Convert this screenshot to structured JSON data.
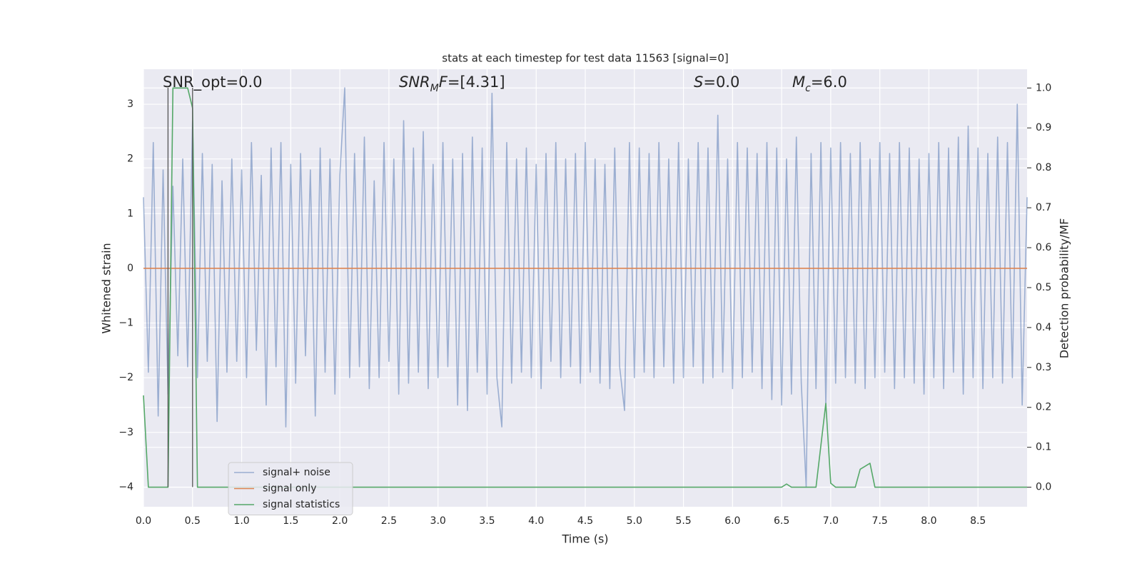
{
  "chart_data": {
    "type": "line",
    "title": "stats at each timestep for test data 11563 [signal=0]",
    "xlabel": "Time (s)",
    "ylabel": "Whitened strain",
    "y2label": "Detection probability/MF",
    "xlim": [
      0,
      9
    ],
    "ylim": [
      -4.36,
      3.64
    ],
    "y2lim": [
      -0.049,
      1.047
    ],
    "xticks": [
      {
        "value": 0,
        "label": "0.0"
      },
      0.5,
      {
        "value": 1,
        "label": "1.0"
      },
      1.5,
      {
        "value": 2,
        "label": "2.0"
      },
      2.5,
      {
        "value": 3,
        "label": "3.0"
      },
      3.5,
      {
        "value": 4,
        "label": "4.0"
      },
      4.5,
      {
        "value": 5,
        "label": "5.0"
      },
      5.5,
      {
        "value": 6,
        "label": "6.0"
      },
      6.5,
      {
        "value": 7,
        "label": "7.0"
      },
      7.5,
      {
        "value": 8,
        "label": "8.0"
      },
      8.5
    ],
    "yticks": [
      {
        "value": -4,
        "label": "−4"
      },
      {
        "value": -3,
        "label": "−3"
      },
      {
        "value": -2,
        "label": "−2"
      },
      {
        "value": -1,
        "label": "−1"
      },
      0,
      1,
      2,
      3
    ],
    "y2ticks": [
      {
        "value": 0,
        "label": "0.0"
      },
      0.1,
      0.2,
      0.3,
      0.4,
      0.5,
      0.6,
      0.7,
      0.8,
      0.9,
      {
        "value": 1,
        "label": "1.0"
      }
    ],
    "grid": true,
    "legend": "best",
    "series": [
      {
        "name": "signal+ noise",
        "color": "#4c72b0",
        "opacity": 0.5,
        "x": [
          0,
          0.05,
          0.1,
          0.15,
          0.2,
          0.25,
          0.3,
          0.35,
          0.4,
          0.45,
          0.5,
          0.55,
          0.6,
          0.65,
          0.7,
          0.75,
          0.8,
          0.85,
          0.9,
          0.95,
          1,
          1.05,
          1.1,
          1.15,
          1.2,
          1.25,
          1.3,
          1.35,
          1.4,
          1.45,
          1.5,
          1.55,
          1.6,
          1.65,
          1.7,
          1.75,
          1.8,
          1.85,
          1.9,
          1.95,
          2,
          2.05,
          2.1,
          2.15,
          2.2,
          2.25,
          2.3,
          2.35,
          2.4,
          2.45,
          2.5,
          2.55,
          2.6,
          2.65,
          2.7,
          2.75,
          2.8,
          2.85,
          2.9,
          2.95,
          3,
          3.05,
          3.1,
          3.15,
          3.2,
          3.25,
          3.3,
          3.35,
          3.4,
          3.45,
          3.5,
          3.55,
          3.6,
          3.65,
          3.7,
          3.75,
          3.8,
          3.85,
          3.9,
          3.95,
          4,
          4.05,
          4.1,
          4.15,
          4.2,
          4.25,
          4.3,
          4.35,
          4.4,
          4.45,
          4.5,
          4.55,
          4.6,
          4.65,
          4.7,
          4.75,
          4.8,
          4.85,
          4.9,
          4.95,
          5,
          5.05,
          5.1,
          5.15,
          5.2,
          5.25,
          5.3,
          5.35,
          5.4,
          5.45,
          5.5,
          5.55,
          5.6,
          5.65,
          5.7,
          5.75,
          5.8,
          5.85,
          5.9,
          5.95,
          6,
          6.05,
          6.1,
          6.15,
          6.2,
          6.25,
          6.3,
          6.35,
          6.4,
          6.45,
          6.5,
          6.55,
          6.6,
          6.65,
          6.7,
          6.75,
          6.8,
          6.85,
          6.9,
          6.95,
          7,
          7.05,
          7.1,
          7.15,
          7.2,
          7.25,
          7.3,
          7.35,
          7.4,
          7.45,
          7.5,
          7.55,
          7.6,
          7.65,
          7.7,
          7.75,
          7.8,
          7.85,
          7.9,
          7.95,
          8,
          8.05,
          8.1,
          8.15,
          8.2,
          8.25,
          8.3,
          8.35,
          8.4,
          8.45,
          8.5,
          8.55,
          8.6,
          8.65,
          8.7,
          8.75,
          8.8,
          8.85,
          8.9,
          8.95,
          9
        ],
        "values": [
          1.3,
          -1.9,
          2.3,
          -2.7,
          1.8,
          -2.3,
          1.5,
          -1.6,
          2.0,
          -1.8,
          2.7,
          -2.0,
          2.1,
          -1.7,
          1.9,
          -2.8,
          1.6,
          -1.9,
          2.0,
          -1.7,
          1.8,
          -2.0,
          2.3,
          -1.5,
          1.7,
          -2.5,
          2.2,
          -1.8,
          2.3,
          -2.9,
          1.9,
          -2.1,
          2.1,
          -1.6,
          1.8,
          -2.7,
          2.2,
          -1.9,
          2.0,
          -2.3,
          1.7,
          3.3,
          -2.0,
          2.1,
          -1.8,
          2.4,
          -2.2,
          1.6,
          -2.0,
          2.3,
          -1.7,
          2.0,
          -2.3,
          2.7,
          -2.1,
          2.2,
          -1.9,
          2.5,
          -2.2,
          1.9,
          -2.0,
          2.3,
          -1.8,
          2.0,
          -2.5,
          2.1,
          -2.6,
          2.4,
          -1.9,
          2.2,
          -2.3,
          3.2,
          -2.0,
          -2.9,
          2.3,
          -2.1,
          2.0,
          -1.9,
          2.2,
          -2.0,
          1.9,
          -2.2,
          2.1,
          -1.7,
          2.3,
          -2.0,
          2.0,
          -1.8,
          2.1,
          -2.1,
          2.3,
          -1.9,
          2.0,
          -2.1,
          1.9,
          -2.2,
          2.2,
          -1.8,
          -2.6,
          2.3,
          -2.0,
          2.2,
          -1.9,
          2.1,
          -2.0,
          2.3,
          -1.8,
          2.0,
          -2.1,
          2.3,
          -2.0,
          2.0,
          -1.8,
          2.3,
          -2.1,
          2.2,
          -2.0,
          2.8,
          -1.9,
          2.0,
          -2.2,
          2.3,
          -2.0,
          2.2,
          -1.9,
          2.1,
          -2.2,
          2.3,
          -2.4,
          2.2,
          -2.5,
          2.0,
          -2.3,
          2.4,
          -2.1,
          -4.0,
          2.1,
          -2.2,
          2.3,
          -2.5,
          2.2,
          -2.1,
          2.3,
          -2.0,
          2.1,
          -2.1,
          2.3,
          -2.2,
          2.0,
          -2.0,
          2.3,
          -1.9,
          2.1,
          -2.2,
          2.3,
          -2.0,
          2.2,
          -2.1,
          2.0,
          -2.3,
          2.1,
          -2.0,
          2.3,
          -2.2,
          2.2,
          -1.9,
          2.4,
          -2.3,
          2.6,
          -2.0,
          2.2,
          -2.2,
          2.1,
          -2.0,
          2.4,
          -2.1,
          2.3,
          -2.0,
          3.0,
          -2.5,
          1.3
        ]
      },
      {
        "name": "signal only",
        "color": "#dd8452",
        "opacity": 1,
        "x": [
          0,
          9
        ],
        "values": [
          0,
          0
        ]
      },
      {
        "name": "signal statistics",
        "color": "#55a868",
        "opacity": 1,
        "axis": "y2",
        "x": [
          0,
          0.05,
          0.25,
          0.3,
          0.45,
          0.5,
          0.55,
          6.5,
          6.55,
          6.6,
          6.75,
          6.85,
          6.95,
          7.0,
          7.05,
          7.25,
          7.3,
          7.4,
          7.45,
          7.5,
          9.0
        ],
        "values": [
          0.23,
          0,
          0,
          1.0,
          1.0,
          0.95,
          0,
          0,
          0.008,
          0,
          0,
          0,
          0.21,
          0.01,
          0,
          0,
          0.045,
          0.06,
          0,
          0,
          0
        ]
      }
    ],
    "vlines": [
      {
        "x": 0.25,
        "ymin": -4,
        "ymax": 3.3
      },
      {
        "x": 0.5,
        "ymin": -4,
        "ymax": 3.3
      }
    ],
    "annotations": [
      [
        {
          "t": "SNR_opt=0.0",
          "i": false,
          "sub": false
        }
      ],
      [
        {
          "t": "SNR",
          "i": true,
          "sub": false
        },
        {
          "t": "M",
          "i": true,
          "sub": true
        },
        {
          "t": "F",
          "i": true,
          "sub": false
        },
        {
          "t": "=[4.31]",
          "i": false,
          "sub": false
        }
      ],
      [
        {
          "t": "S",
          "i": true,
          "sub": false
        },
        {
          "t": "=0.0",
          "i": false,
          "sub": false
        }
      ],
      [
        {
          "t": "M",
          "i": true,
          "sub": false
        },
        {
          "t": "c",
          "i": true,
          "sub": true
        },
        {
          "t": "=6.0",
          "i": false,
          "sub": false
        }
      ]
    ]
  }
}
